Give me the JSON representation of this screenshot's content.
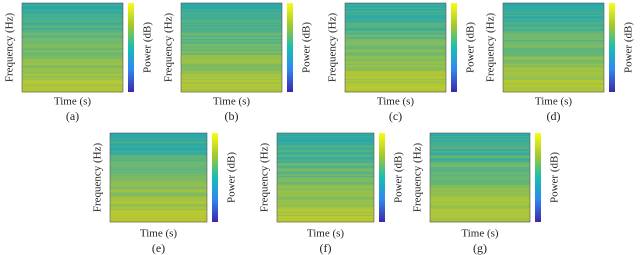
{
  "figure": {
    "panels": [
      {
        "label": "(a)",
        "xlabel": "Time (s)",
        "ylabel": "Frequency (Hz)",
        "colorbar_label": "Power (dB)"
      },
      {
        "label": "(b)",
        "xlabel": "Time (s)",
        "ylabel": "Frequency (Hz)",
        "colorbar_label": "Power (dB)"
      },
      {
        "label": "(c)",
        "xlabel": "Time (s)",
        "ylabel": "Frequency (Hz)",
        "colorbar_label": "Power (dB)"
      },
      {
        "label": "(d)",
        "xlabel": "Time (s)",
        "ylabel": "Frequency (Hz)",
        "colorbar_label": "Power (dB)"
      },
      {
        "label": "(e)",
        "xlabel": "Time (s)",
        "ylabel": "Frequency (Hz)",
        "colorbar_label": "Power (dB)"
      },
      {
        "label": "(f)",
        "xlabel": "Time (s)",
        "ylabel": "Frequency (Hz)",
        "colorbar_label": "Power (dB)"
      },
      {
        "label": "(g)",
        "xlabel": "Time (s)",
        "ylabel": "Frequency (Hz)",
        "colorbar_label": "Power (dB)"
      }
    ]
  }
}
